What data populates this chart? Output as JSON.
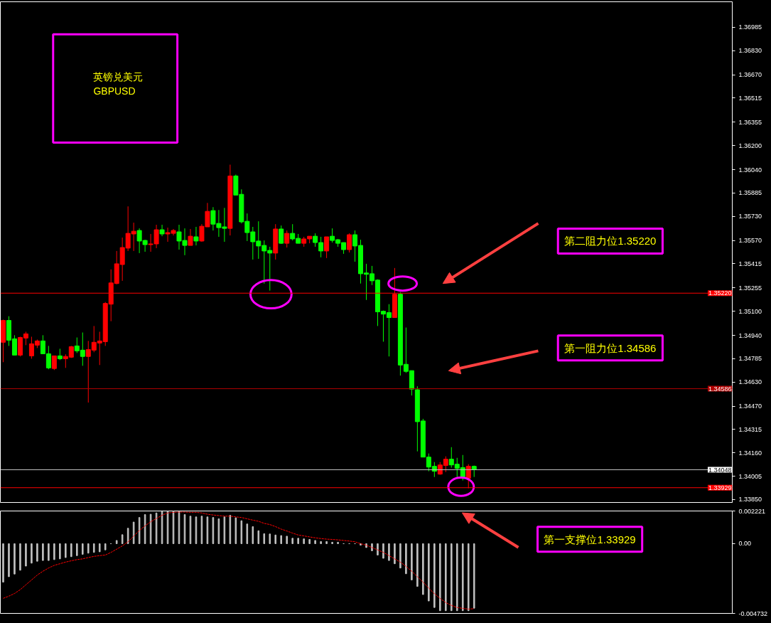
{
  "chart_data": [
    {
      "type": "candlestick",
      "title": "英镑兑美元",
      "subtitle": "GBPUSD",
      "categories": [
        null,
        null,
        null,
        null,
        null,
        null,
        null,
        null,
        null,
        null,
        null,
        null,
        null,
        null,
        null,
        null,
        null,
        null,
        null,
        null,
        null,
        null,
        null,
        null,
        null,
        null,
        null,
        null,
        null,
        null,
        null,
        null,
        null,
        null,
        null,
        null,
        null,
        null,
        null,
        null,
        null,
        null,
        null,
        null,
        null,
        null,
        null,
        null,
        null,
        null,
        null,
        null,
        null,
        null,
        null,
        null,
        null,
        null,
        null,
        null,
        null,
        null,
        null,
        null,
        null,
        null,
        null,
        null,
        null,
        null,
        null,
        null,
        null,
        null,
        null,
        null,
        null,
        null,
        null,
        null,
        null,
        null,
        null,
        null,
        null,
        null,
        null,
        null,
        null,
        null,
        null,
        null,
        null,
        null,
        null,
        null,
        null,
        null,
        null,
        null,
        null,
        null,
        null,
        null,
        null,
        null,
        null,
        null,
        null,
        null,
        null,
        null,
        null,
        null,
        null,
        null,
        null,
        null,
        null,
        null,
        null,
        null,
        null,
        null,
        null,
        null,
        null,
        null,
        null
      ],
      "ohlc": [
        [
          1.34894,
          1.35044,
          1.34762,
          1.35039
        ],
        [
          1.35039,
          1.35067,
          1.3487,
          1.34908
        ],
        [
          1.34917,
          1.34941,
          1.34809,
          1.34809
        ],
        [
          1.34809,
          1.34931,
          1.348,
          1.34926
        ],
        [
          1.34922,
          1.34964,
          1.34875,
          1.3495
        ],
        [
          1.34804,
          1.34931,
          1.34785,
          1.34884
        ],
        [
          1.34875,
          1.34912,
          1.34856,
          1.34903
        ],
        [
          1.34903,
          1.34941,
          1.34818,
          1.34818
        ],
        [
          1.34818,
          1.3487,
          1.34715,
          1.34724
        ],
        [
          1.3472,
          1.34804,
          1.3471,
          1.34804
        ],
        [
          1.34804,
          1.34851,
          1.34776,
          1.34785
        ],
        [
          1.34785,
          1.34814,
          1.34724,
          1.348
        ],
        [
          1.34795,
          1.3487,
          1.3479,
          1.34865
        ],
        [
          1.3487,
          1.34926,
          1.34823,
          1.34837
        ],
        [
          1.34842,
          1.34959,
          1.34738,
          1.348
        ],
        [
          1.348,
          1.34903,
          1.34494,
          1.34846
        ],
        [
          1.34842,
          1.35002,
          1.34828,
          1.34894
        ],
        [
          1.34889,
          1.34964,
          1.34743,
          1.34903
        ],
        [
          1.34898,
          1.35161,
          1.3487,
          1.35152
        ],
        [
          1.35147,
          1.35378,
          1.35034,
          1.35288
        ],
        [
          1.35284,
          1.355,
          1.35279,
          1.35415
        ],
        [
          1.3541,
          1.35589,
          1.35302,
          1.35523
        ],
        [
          1.35519,
          1.35796,
          1.355,
          1.35617
        ],
        [
          1.35613,
          1.35688,
          1.355,
          1.35631
        ],
        [
          1.35636,
          1.3565,
          1.35486,
          1.35566
        ],
        [
          1.3557,
          1.35575,
          1.35495,
          1.35542
        ],
        [
          1.35542,
          1.35613,
          1.35495,
          1.35547
        ],
        [
          1.35547,
          1.35674,
          1.35519,
          1.35641
        ],
        [
          1.35641,
          1.35674,
          1.35598,
          1.35613
        ],
        [
          1.35613,
          1.35655,
          1.35561,
          1.35622
        ],
        [
          1.35617,
          1.35646,
          1.35603,
          1.35636
        ],
        [
          1.35627,
          1.35674,
          1.35509,
          1.35566
        ],
        [
          1.3557,
          1.3565,
          1.35472,
          1.35537
        ],
        [
          1.35537,
          1.35646,
          1.35537,
          1.35598
        ],
        [
          1.35594,
          1.3566,
          1.35537,
          1.35566
        ],
        [
          1.35566,
          1.35678,
          1.35561,
          1.35664
        ],
        [
          1.3566,
          1.35819,
          1.3566,
          1.35763
        ],
        [
          1.35768,
          1.35791,
          1.35636,
          1.35678
        ],
        [
          1.35683,
          1.35772,
          1.35594,
          1.35655
        ],
        [
          1.3566,
          1.35786,
          1.35561,
          1.3565
        ],
        [
          1.3565,
          1.36073,
          1.35603,
          1.35998
        ],
        [
          1.35998,
          1.36007,
          1.35871,
          1.35871
        ],
        [
          1.35876,
          1.35909,
          1.35683,
          1.35693
        ],
        [
          1.35697,
          1.35749,
          1.35566,
          1.35622
        ],
        [
          1.35627,
          1.3566,
          1.35443,
          1.35561
        ],
        [
          1.35566,
          1.35697,
          1.35448,
          1.35533
        ],
        [
          1.35537,
          1.3557,
          1.35284,
          1.355
        ],
        [
          1.35504,
          1.35528,
          1.35237,
          1.35486
        ],
        [
          1.35486,
          1.35678,
          1.35443,
          1.35646
        ],
        [
          1.35646,
          1.35669,
          1.35547,
          1.35551
        ],
        [
          1.35551,
          1.35636,
          1.35523,
          1.35617
        ],
        [
          1.35617,
          1.35678,
          1.3557,
          1.3558
        ],
        [
          1.35584,
          1.35613,
          1.35551,
          1.35551
        ],
        [
          1.35551,
          1.35594,
          1.35528,
          1.3558
        ],
        [
          1.3558,
          1.35598,
          1.35551,
          1.35598
        ],
        [
          1.35598,
          1.35617,
          1.35528,
          1.35556
        ],
        [
          1.35556,
          1.35594,
          1.35458,
          1.355
        ],
        [
          1.355,
          1.35594,
          1.35453,
          1.35594
        ],
        [
          1.35598,
          1.3565,
          1.35556,
          1.3557
        ],
        [
          1.35575,
          1.3558,
          1.35528,
          1.35551
        ],
        [
          1.35556,
          1.35556,
          1.35481,
          1.35509
        ],
        [
          1.35509,
          1.35617,
          1.3549,
          1.35608
        ],
        [
          1.35608,
          1.35636,
          1.35429,
          1.35533
        ],
        [
          1.35537,
          1.35575,
          1.35284,
          1.35349
        ],
        [
          1.35354,
          1.35415,
          1.35175,
          1.35345
        ],
        [
          1.35349,
          1.35401,
          1.35274,
          1.35302
        ],
        [
          1.35307,
          1.35312,
          1.35002,
          1.35096
        ],
        [
          1.351,
          1.35105,
          1.34898,
          1.35081
        ],
        [
          1.35091,
          1.35147,
          1.348,
          1.35058
        ],
        [
          1.35058,
          1.35387,
          1.35058,
          1.35213
        ],
        [
          1.35213,
          1.35227,
          1.34673,
          1.34743
        ],
        [
          1.34748,
          1.34992,
          1.34691,
          1.34701
        ],
        [
          1.34706,
          1.34706,
          1.34541,
          1.34583
        ],
        [
          1.34579,
          1.34602,
          1.3417,
          1.34367
        ],
        [
          1.34372,
          1.34386,
          1.34132,
          1.34132
        ],
        [
          1.34132,
          1.34156,
          1.34038,
          1.34066
        ],
        [
          1.34071,
          1.34099,
          1.34,
          1.34038
        ],
        [
          1.34019,
          1.34099,
          1.34015,
          1.3408
        ],
        [
          1.34076,
          1.34137,
          1.34033,
          1.34118
        ],
        [
          1.34118,
          1.34198,
          1.34062,
          1.3408
        ],
        [
          1.34085,
          1.34127,
          1.33991,
          1.34057
        ],
        [
          1.34062,
          1.34146,
          1.33977,
          1.33996
        ],
        [
          1.33991,
          1.34085,
          1.33925,
          1.34071
        ],
        [
          1.34071,
          1.34076,
          1.34,
          1.34048
        ],
        null,
        null,
        null,
        null,
        null,
        null,
        null,
        null,
        null,
        null,
        null,
        null,
        null,
        null,
        null,
        null,
        null,
        null,
        null,
        null,
        null,
        null,
        null,
        null,
        null,
        null,
        null,
        null,
        null,
        null,
        null,
        null,
        null,
        null,
        null,
        null,
        null,
        null,
        null,
        null,
        null,
        null,
        null,
        null,
        null
      ],
      "colors": [
        "#ff0000",
        "#00ff00",
        "#00ff00",
        "#ff0000",
        "#ff0000",
        "#ff0000",
        "#ff0000",
        "#00ff00",
        "#00ff00",
        "#ff0000",
        "#00ff00",
        "#ff0000",
        "#ff0000",
        "#00ff00",
        "#00ff00",
        "#ff0000",
        "#ff0000",
        "#ff0000",
        "#ff0000",
        "#ff0000",
        "#ff0000",
        "#ff0000",
        "#ff0000",
        "#ff0000",
        "#00ff00",
        "#00ff00",
        "#ff0000",
        "#ff0000",
        "#00ff00",
        "#ff0000",
        "#ff0000",
        "#00ff00",
        "#00ff00",
        "#ff0000",
        "#00ff00",
        "#ff0000",
        "#ff0000",
        "#00ff00",
        "#00ff00",
        "#00ff00",
        "#ff0000",
        "#00ff00",
        "#00ff00",
        "#00ff00",
        "#00ff00",
        "#00ff00",
        "#00ff00",
        "#00ff00",
        "#ff0000",
        "#00ff00",
        "#ff0000",
        "#00ff00",
        "#00ff00",
        "#ff0000",
        "#ff0000",
        "#00ff00",
        "#00ff00",
        "#ff0000",
        "#00ff00",
        "#00ff00",
        "#00ff00",
        "#ff0000",
        "#00ff00",
        "#00ff00",
        "#00ff00",
        "#00ff00",
        "#00ff00",
        "#00ff00",
        "#00ff00",
        "#ff0000",
        "#00ff00",
        "#00ff00",
        "#00ff00",
        "#00ff00",
        "#00ff00",
        "#00ff00",
        "#00ff00",
        "#ff0000",
        "#ff0000",
        "#00ff00",
        "#00ff00",
        "#00ff00",
        "#ff0000",
        "#00ff00",
        null,
        null,
        null,
        null,
        null,
        null,
        null,
        null,
        null,
        null,
        null,
        null,
        null,
        null,
        null,
        null,
        null,
        null,
        null,
        null,
        null,
        null,
        null,
        null,
        null,
        null,
        null,
        null,
        null,
        null,
        null,
        null,
        null,
        null,
        null,
        null,
        null,
        null,
        null,
        null,
        null,
        null,
        null,
        null,
        null
      ],
      "ylim": [
        1.33831,
        1.37154
      ],
      "yticks": [
        1.36985,
        {
          "value": 1.3683,
          "label": "1.36830"
        },
        {
          "value": 1.3667,
          "label": "1.36670"
        },
        1.36515,
        1.36355,
        {
          "value": 1.362,
          "label": "1.36200"
        },
        {
          "value": 1.3604,
          "label": "1.36040"
        },
        1.35885,
        {
          "value": 1.3573,
          "label": "1.35730"
        },
        {
          "value": 1.3557,
          "label": "1.35570"
        },
        1.35415,
        1.35255,
        {
          "value": 1.351,
          "label": "1.35100"
        },
        {
          "value": 1.3494,
          "label": "1.34940"
        },
        1.34785,
        {
          "value": 1.3463,
          "label": "1.34630"
        },
        {
          "value": 1.3447,
          "label": "1.34470"
        },
        1.34315,
        {
          "value": 1.3416,
          "label": "1.34160"
        },
        1.34005,
        {
          "value": 1.3385,
          "label": "1.33850"
        }
      ],
      "ref_lines": [
        {
          "axis": "y",
          "value": 1.3522,
          "label": "1.35220",
          "color": "#ff0000"
        },
        {
          "axis": "y",
          "value": 1.34586,
          "label": "1.34586",
          "color": "#b00000"
        },
        {
          "axis": "y",
          "value": 1.34048,
          "label": "1.34048",
          "color": "#c0c0c0"
        },
        {
          "axis": "y",
          "value": 1.33929,
          "label": "1.33929",
          "color": "#ff0000"
        }
      ],
      "annotations": [
        "第二阻力位1.35220",
        "第一阻力位1.34586",
        "第一支撑位1.33929"
      ],
      "tick_labels": "y"
    },
    {
      "type": "bar",
      "categories": [
        null,
        null,
        null,
        null,
        null,
        null,
        null,
        null,
        null,
        null,
        null,
        null,
        null,
        null,
        null,
        null,
        null,
        null,
        null,
        null,
        null,
        null,
        null,
        null,
        null,
        null,
        null,
        null,
        null,
        null,
        null,
        null,
        null,
        null,
        null,
        null,
        null,
        null,
        null,
        null,
        null,
        null,
        null,
        null,
        null,
        null,
        null,
        null,
        null,
        null,
        null,
        null,
        null,
        null,
        null,
        null,
        null,
        null,
        null,
        null,
        null,
        null,
        null,
        null,
        null,
        null,
        null,
        null,
        null,
        null,
        null,
        null,
        null,
        null,
        null,
        null,
        null,
        null,
        null,
        null,
        null,
        null,
        null,
        null,
        null,
        null,
        null,
        null,
        null,
        null,
        null,
        null,
        null,
        null,
        null,
        null,
        null,
        null,
        null,
        null,
        null,
        null,
        null,
        null,
        null,
        null,
        null,
        null,
        null,
        null,
        null,
        null,
        null,
        null,
        null,
        null,
        null,
        null,
        null,
        null,
        null,
        null,
        null,
        null,
        null,
        null,
        null,
        null,
        null
      ],
      "series": [
        {
          "type": "bar",
          "color": "#c0c0c0",
          "values": [
            -0.00261,
            -0.00224,
            -0.00206,
            -0.0018,
            -0.00152,
            -0.00132,
            -0.00119,
            -0.00114,
            -0.00114,
            -0.00108,
            -0.00103,
            -0.00094,
            -0.00088,
            -0.00081,
            -0.00072,
            -0.00064,
            -0.00059,
            -0.00055,
            -0.00042,
            0,
            0.00022,
            0.00061,
            0.00105,
            0.00147,
            0.00178,
            0.00198,
            0.002,
            0.00209,
            0.00217,
            0.00221,
            0.00222,
            0.0022,
            0.00198,
            0.00187,
            0.00182,
            0.00187,
            0.00182,
            0.00178,
            0.00169,
            0.00182,
            0.00193,
            0.00176,
            0.00156,
            0.00134,
            0.00116,
            0.00088,
            0.00068,
            0.00066,
            0.00059,
            0.00055,
            0.00051,
            0.00037,
            0.00037,
            0.00033,
            0.00029,
            0.00022,
            0.00015,
            0.00015,
            0.0001,
            0.0001,
            0,
            0,
            0,
            -0.0001,
            -0.00026,
            -0.00048,
            -0.00077,
            -0.00099,
            -0.00114,
            -0.00136,
            -0.00165,
            -0.00204,
            -0.00246,
            -0.0029,
            -0.00345,
            -0.00389,
            -0.00433,
            -0.00455,
            -0.00455,
            -0.00455,
            -0.00455,
            -0.00455,
            -0.00455,
            -0.00438,
            null,
            null,
            null,
            null,
            null,
            null,
            null,
            null,
            null,
            null,
            null,
            null,
            null,
            null,
            null,
            null,
            null,
            null,
            null,
            null,
            null,
            null,
            null,
            null,
            null,
            null,
            null,
            null,
            null,
            null,
            null,
            null,
            null,
            null,
            null,
            null,
            null,
            null,
            null,
            null,
            null,
            null,
            null,
            null,
            null
          ]
        },
        {
          "type": "line",
          "color": "#ff0000",
          "line_style": "dotted",
          "values": [
            -0.00371,
            -0.00356,
            -0.00338,
            -0.00312,
            -0.00279,
            -0.00246,
            -0.00213,
            -0.00187,
            -0.00165,
            -0.00147,
            -0.00136,
            -0.00125,
            -0.00116,
            -0.00108,
            -0.00103,
            -0.00094,
            -0.00086,
            -0.00081,
            -0.00077,
            -0.00059,
            -0.00037,
            -0.00015,
            0.00013,
            0.00051,
            0.0009,
            0.00121,
            0.00149,
            0.00171,
            0.00193,
            0.00209,
            0.00213,
            0.00215,
            0.00215,
            0.00213,
            0.00213,
            0.00209,
            0.002,
            0.00195,
            0.00191,
            0.00187,
            0.00187,
            0.00182,
            0.00178,
            0.00169,
            0.0016,
            0.00152,
            0.00138,
            0.0013,
            0.00116,
            0.00099,
            0.00086,
            0.00072,
            0.00059,
            0.00053,
            0.00046,
            0.0004,
            0.00035,
            0.00031,
            0.00029,
            0.00026,
            0.00022,
            0.00018,
            0.00013,
            0,
            -0.0001,
            -0.00026,
            -0.00042,
            -0.00059,
            -0.00081,
            -0.00103,
            -0.00125,
            -0.00154,
            -0.00187,
            -0.00224,
            -0.00261,
            -0.00301,
            -0.0034,
            -0.00371,
            -0.004,
            -0.00419,
            -0.00433,
            -0.00439,
            -0.00444,
            -0.00441,
            null,
            null,
            null,
            null,
            null,
            null,
            null,
            null,
            null,
            null,
            null,
            null,
            null,
            null,
            null,
            null,
            null,
            null,
            null,
            null,
            null,
            null,
            null,
            null,
            null,
            null,
            null,
            null,
            null,
            null,
            null,
            null,
            null,
            null,
            null,
            null,
            null,
            null,
            null,
            null,
            null,
            null,
            null,
            null,
            null
          ]
        }
      ],
      "ylim": [
        -0.004732,
        0.002221
      ],
      "yticks": [
        0.002221,
        {
          "value": 0,
          "label": "0.00"
        },
        -0.004732
      ],
      "tick_labels": "y"
    }
  ]
}
